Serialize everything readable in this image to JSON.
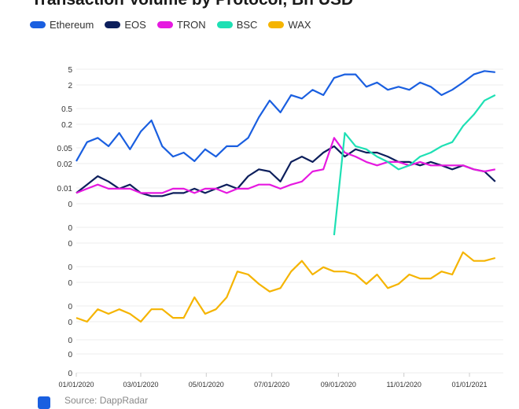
{
  "chart_data": {
    "type": "line",
    "title": "Transaction Volume by Protocol, Bn USD",
    "source": "Source: DappRadar",
    "yscale": "log",
    "grid": true,
    "legend": "top-left",
    "y_ticks": [
      {
        "label": "5",
        "value": 5
      },
      {
        "label": "2",
        "value": 2
      },
      {
        "label": "0.5",
        "value": 0.5
      },
      {
        "label": "0.2",
        "value": 0.2
      },
      {
        "label": "0.05",
        "value": 0.05
      },
      {
        "label": "0.02",
        "value": 0.02
      },
      {
        "label": "0.01",
        "value": 0.01
      },
      {
        "label": "0",
        "value": 0.005
      },
      {
        "label": "0",
        "value": 0.002
      },
      {
        "label": "0",
        "value": 0.0005
      },
      {
        "label": "0",
        "value": 0.0002
      },
      {
        "label": "0",
        "value": 5e-05
      },
      {
        "label": "0",
        "value": 2e-05
      },
      {
        "label": "0",
        "value": 5e-06
      },
      {
        "label": "0",
        "value": 2e-06
      },
      {
        "label": "0",
        "value": 5e-07
      },
      {
        "label": "0",
        "value": 2e-07
      }
    ],
    "x_ticks": [
      "01/01/2020",
      "03/01/2020",
      "05/01/2020",
      "07/01/2020",
      "09/01/2020",
      "11/01/2020",
      "01/01/2021"
    ],
    "x": [
      "2020-01-01",
      "2020-01-11",
      "2020-01-21",
      "2020-01-31",
      "2020-02-10",
      "2020-02-20",
      "2020-03-01",
      "2020-03-11",
      "2020-03-21",
      "2020-03-31",
      "2020-04-10",
      "2020-04-20",
      "2020-04-30",
      "2020-05-10",
      "2020-05-20",
      "2020-05-30",
      "2020-06-09",
      "2020-06-19",
      "2020-06-29",
      "2020-07-09",
      "2020-07-19",
      "2020-07-29",
      "2020-08-08",
      "2020-08-18",
      "2020-08-28",
      "2020-09-07",
      "2020-09-17",
      "2020-09-27",
      "2020-10-07",
      "2020-10-17",
      "2020-10-27",
      "2020-11-06",
      "2020-11-16",
      "2020-11-26",
      "2020-12-06",
      "2020-12-16",
      "2020-12-26",
      "2021-01-05",
      "2021-01-15",
      "2021-01-25"
    ],
    "series": [
      {
        "name": "Ethereum",
        "color": "#1a5fe0",
        "values": [
          0.023,
          0.07,
          0.09,
          0.055,
          0.12,
          0.046,
          0.13,
          0.25,
          0.055,
          0.03,
          0.038,
          0.023,
          0.046,
          0.03,
          0.055,
          0.055,
          0.09,
          0.3,
          0.8,
          0.4,
          1.1,
          0.9,
          1.5,
          1.1,
          3,
          3.7,
          3.7,
          1.8,
          2.3,
          1.5,
          1.8,
          1.5,
          2.3,
          1.8,
          1.1,
          1.5,
          2.3,
          3.7,
          4.5,
          4.2
        ]
      },
      {
        "name": "EOS",
        "color": "#0d1f5c",
        "values": [
          0.008,
          0.011,
          0.014,
          0.012,
          0.0097,
          0.011,
          0.008,
          0.007,
          0.007,
          0.008,
          0.008,
          0.0097,
          0.008,
          0.0097,
          0.011,
          0.0097,
          0.014,
          0.017,
          0.016,
          0.012,
          0.022,
          0.03,
          0.022,
          0.038,
          0.055,
          0.03,
          0.046,
          0.038,
          0.038,
          0.03,
          0.022,
          0.022,
          0.019,
          0.022,
          0.019,
          0.017,
          0.019,
          0.017,
          0.016,
          0.012
        ]
      },
      {
        "name": "TRON",
        "color": "#e619e0",
        "values": [
          0.008,
          0.0097,
          0.011,
          0.0097,
          0.0097,
          0.0097,
          0.008,
          0.008,
          0.008,
          0.0097,
          0.0097,
          0.008,
          0.0097,
          0.0097,
          0.008,
          0.0097,
          0.0097,
          0.011,
          0.011,
          0.0097,
          0.011,
          0.012,
          0.016,
          0.017,
          0.09,
          0.038,
          0.03,
          0.022,
          0.019,
          0.022,
          0.022,
          0.019,
          0.022,
          0.019,
          0.019,
          0.019,
          0.019,
          0.017,
          0.016,
          0.017
        ]
      },
      {
        "name": "BSC",
        "color": "#1ee0b4",
        "values": [
          null,
          null,
          null,
          null,
          null,
          null,
          null,
          null,
          null,
          null,
          null,
          null,
          null,
          null,
          null,
          null,
          null,
          null,
          null,
          null,
          null,
          null,
          null,
          null,
          0.001,
          0.12,
          0.055,
          0.046,
          0.03,
          0.022,
          0.017,
          0.019,
          0.03,
          0.038,
          0.055,
          0.07,
          0.18,
          0.35,
          0.8,
          1.1
        ]
      },
      {
        "name": "WAX",
        "color": "#f5b400",
        "values": [
          7e-06,
          5e-06,
          1.5e-05,
          1e-05,
          1.5e-05,
          1e-05,
          5e-06,
          1.5e-05,
          1.5e-05,
          7e-06,
          7e-06,
          2.8e-05,
          1e-05,
          1.5e-05,
          2.8e-05,
          0.00013,
          0.0001,
          4.7e-05,
          3.5e-05,
          4e-05,
          0.00013,
          0.00025,
          0.0001,
          0.00019,
          0.00013,
          0.00013,
          0.0001,
          4.7e-05,
          0.0001,
          4e-05,
          4.7e-05,
          0.0001,
          7e-05,
          7e-05,
          0.00013,
          0.0001,
          0.00035,
          0.00025,
          0.00025,
          0.00028
        ]
      }
    ]
  }
}
